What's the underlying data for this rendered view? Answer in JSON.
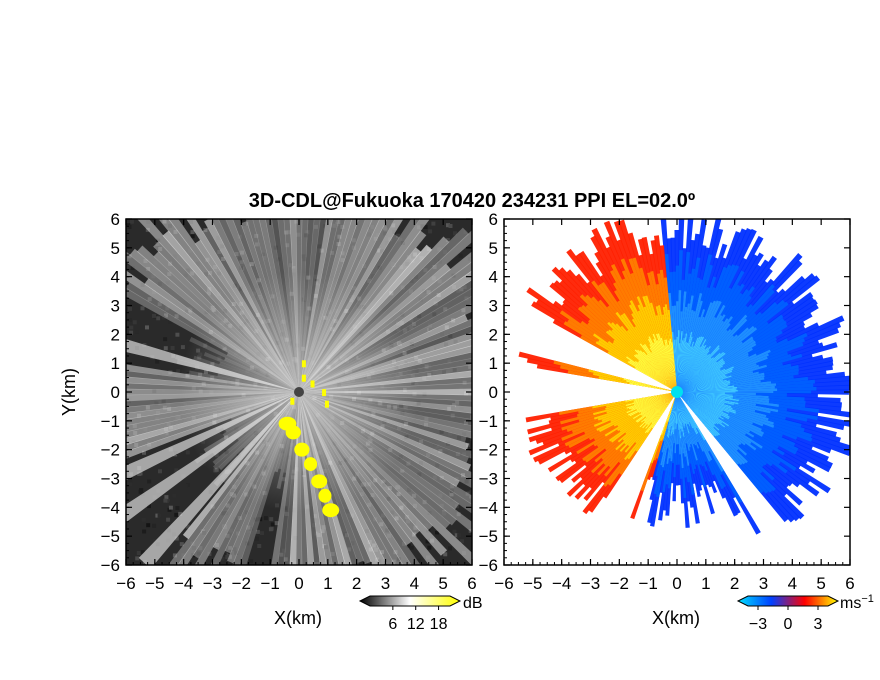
{
  "chart_data": [
    {
      "type": "heatmap",
      "panel": "reflectivity",
      "title": "3D-CDL@Fukuoka 170420 234231 PPI EL=02.0º",
      "xlabel": "X(km)",
      "ylabel": "Y(km)",
      "xlim": [
        -6,
        6
      ],
      "ylim": [
        -6,
        6
      ],
      "xticks": [
        "−6",
        "−5",
        "−4",
        "−3",
        "−2",
        "−1",
        "0",
        "1",
        "2",
        "3",
        "4",
        "5",
        "6"
      ],
      "yticks": [
        "6",
        "5",
        "4",
        "3",
        "2",
        "1",
        "0",
        "−1",
        "−2",
        "−3",
        "−4",
        "−5",
        "−6"
      ],
      "colorbar": {
        "unit": "dB",
        "ticks": [
          "6",
          "12",
          "18"
        ],
        "tick_values": [
          6,
          12,
          18
        ],
        "range": [
          0,
          21
        ],
        "colors": [
          "#000000",
          "#ffffff",
          "#ffff00"
        ]
      },
      "background_color": "#2a2a2a",
      "highlight_color": "#ffff00",
      "site_marker": {
        "x": 0,
        "y": 0,
        "color": "#444444"
      }
    },
    {
      "type": "heatmap",
      "panel": "doppler-velocity",
      "xlabel": "X(km)",
      "xlim": [
        -6,
        6
      ],
      "ylim": [
        -6,
        6
      ],
      "xticks": [
        "−6",
        "−5",
        "−4",
        "−3",
        "−2",
        "−1",
        "0",
        "1",
        "2",
        "3",
        "4",
        "5",
        "6"
      ],
      "yticks": [
        "6",
        "5",
        "4",
        "3",
        "2",
        "1",
        "0",
        "−1",
        "−2",
        "−3",
        "−4",
        "−5",
        "−6"
      ],
      "colorbar": {
        "unit": "ms",
        "unit_exponent": "−1",
        "ticks": [
          "−3",
          "0",
          "3"
        ],
        "tick_values": [
          -3,
          0,
          3
        ],
        "range": [
          -4,
          4
        ],
        "colors": [
          "#00e0ff",
          "#0040ff",
          "#ff0000",
          "#ffff00"
        ]
      },
      "positive_colors": [
        "#ff2000",
        "#ff8000",
        "#ffd000",
        "#ffff40"
      ],
      "negative_colors": [
        "#0030ff",
        "#0060ff",
        "#2090ff",
        "#40c8ff"
      ],
      "site_marker": {
        "x": 0,
        "y": 0,
        "color": "#00e0f0"
      }
    }
  ]
}
